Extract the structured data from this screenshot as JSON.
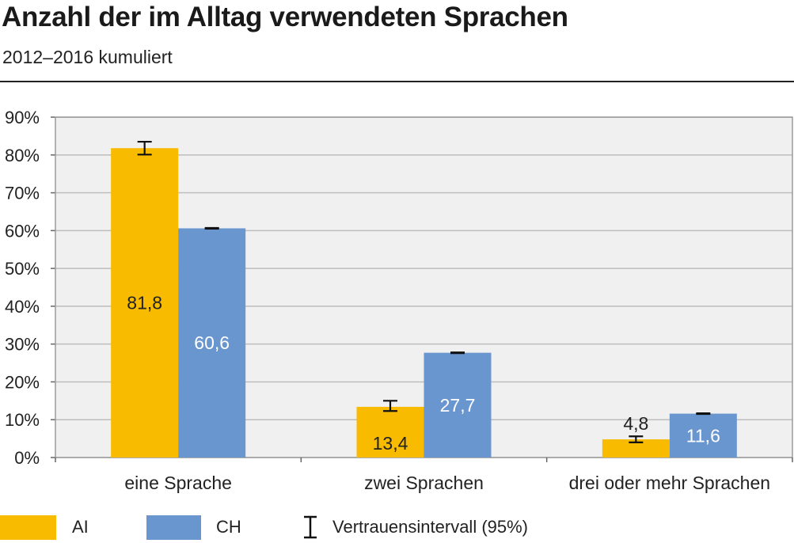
{
  "title": "Anzahl der im Alltag verwendeten Sprachen",
  "subtitle": "2012–2016 kumuliert",
  "colors": {
    "AI": "#f8bb00",
    "CH": "#6a96d0",
    "plot_bg": "#f0f0f0",
    "grid": "#bdbdbd"
  },
  "legend": {
    "ai_label": "AI",
    "ch_label": "CH",
    "ci_label": "Vertrauensintervall (95%)"
  },
  "chart_data": {
    "type": "bar",
    "categories": [
      "eine Sprache",
      "zwei Sprachen",
      "drei oder mehr Sprachen"
    ],
    "series": [
      {
        "name": "AI",
        "values": [
          81.8,
          13.4,
          4.8
        ],
        "labels": [
          "81,8",
          "13,4",
          "4,8"
        ],
        "ci": [
          [
            80.1,
            83.5
          ],
          [
            12.3,
            15.0
          ],
          [
            4.0,
            5.6
          ]
        ]
      },
      {
        "name": "CH",
        "values": [
          60.6,
          27.7,
          11.6
        ],
        "labels": [
          "60,6",
          "27,7",
          "11,6"
        ],
        "ci": [
          [
            60.5,
            60.7
          ],
          [
            27.6,
            27.8
          ],
          [
            11.5,
            11.7
          ]
        ]
      }
    ],
    "ylim": [
      0,
      90
    ],
    "yticks": [
      "0%",
      "10%",
      "20%",
      "30%",
      "40%",
      "50%",
      "60%",
      "70%",
      "80%",
      "90%"
    ],
    "grid": true,
    "legend_position": "bottom-left"
  }
}
